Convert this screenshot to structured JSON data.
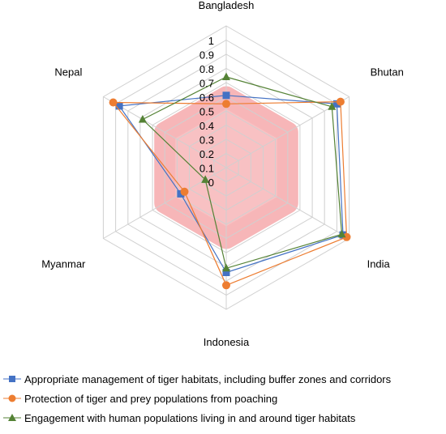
{
  "chart_data": {
    "type": "radar",
    "axes": [
      "Bangladesh",
      "Bhutan",
      "India",
      "Indonesia",
      "Myanmar",
      "Nepal"
    ],
    "ticks": [
      "0",
      "0.1",
      "0.2",
      "0.3",
      "0.4",
      "0.5",
      "0.6",
      "0.7",
      "0.8",
      "0.9",
      "1"
    ],
    "rlim": [
      0,
      1
    ],
    "grid": true,
    "legend_position": "bottom",
    "highlight_region": {
      "max_value": 0.5,
      "color": "#f7b6b8"
    },
    "series": [
      {
        "name": "Appropriate management of tiger habitats, including buffer zones and corridors",
        "color": "#4472C4",
        "marker": "square",
        "values": [
          0.51,
          0.9,
          0.95,
          0.74,
          0.37,
          0.87
        ]
      },
      {
        "name": "Protection of tiger and prey populations from poaching",
        "color": "#ED7D31",
        "marker": "circle",
        "values": [
          0.45,
          0.93,
          0.98,
          0.83,
          0.34,
          0.92
        ]
      },
      {
        "name": "Engagement with human populations living in and around tiger habitats",
        "color": "#548235",
        "marker": "triangle",
        "values": [
          0.64,
          0.86,
          0.94,
          0.71,
          0.17,
          0.68
        ]
      }
    ]
  }
}
